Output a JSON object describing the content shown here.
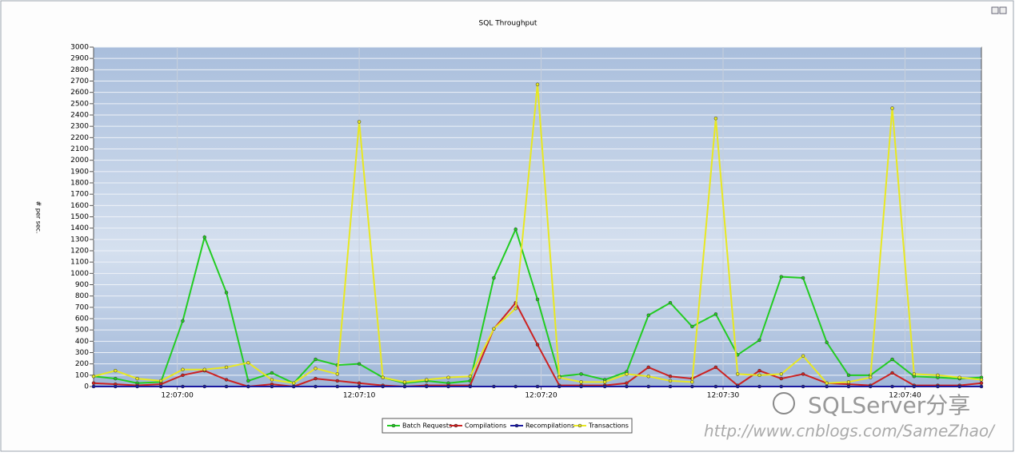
{
  "chart_data": {
    "type": "line",
    "title": "SQL Throughput",
    "y_label": "# per sec.",
    "x": [
      -4.6,
      -3.4,
      -2.2,
      -0.9,
      0.3,
      1.5,
      2.7,
      3.9,
      5.2,
      6.4,
      7.6,
      8.8,
      10.0,
      11.3,
      12.5,
      13.7,
      14.9,
      16.1,
      17.4,
      18.6,
      19.8,
      21.0,
      22.2,
      23.5,
      24.7,
      25.9,
      27.1,
      28.3,
      29.6,
      30.8,
      32.0,
      33.2,
      34.4,
      35.7,
      36.9,
      38.1,
      39.3,
      40.5,
      41.8,
      43.0,
      44.2
    ],
    "xlim": [
      -4.6,
      44.2
    ],
    "xticks": [
      {
        "value": 0,
        "label": "12:07:00"
      },
      {
        "value": 10,
        "label": "12:07:10"
      },
      {
        "value": 20,
        "label": "12:07:20"
      },
      {
        "value": 30,
        "label": "12:07:30"
      },
      {
        "value": 40,
        "label": "12:07:40"
      }
    ],
    "ylim": [
      0,
      3000
    ],
    "yticks": [
      0,
      100,
      200,
      300,
      400,
      500,
      600,
      700,
      800,
      900,
      1000,
      1100,
      1200,
      1300,
      1400,
      1500,
      1600,
      1700,
      1800,
      1900,
      2000,
      2100,
      2200,
      2300,
      2400,
      2500,
      2600,
      2700,
      2800,
      2900,
      3000
    ],
    "grid": true,
    "legend_position": "bottom",
    "series": [
      {
        "name": "Batch Requests",
        "color": "#22cc22",
        "values": [
          90,
          70,
          30,
          40,
          580,
          1320,
          830,
          50,
          120,
          30,
          240,
          190,
          200,
          80,
          30,
          50,
          30,
          50,
          960,
          1390,
          770,
          90,
          110,
          60,
          130,
          630,
          740,
          530,
          640,
          280,
          410,
          970,
          960,
          390,
          100,
          100,
          240,
          90,
          80,
          70,
          80
        ]
      },
      {
        "name": "Compilations",
        "color": "#cc2222",
        "values": [
          30,
          20,
          10,
          20,
          100,
          140,
          60,
          0,
          20,
          0,
          70,
          50,
          30,
          10,
          0,
          10,
          10,
          10,
          510,
          740,
          370,
          10,
          10,
          10,
          30,
          170,
          90,
          70,
          170,
          10,
          140,
          70,
          110,
          30,
          20,
          10,
          120,
          10,
          10,
          10,
          30
        ]
      },
      {
        "name": "Recompilations",
        "color": "#1a1aa0",
        "values": [
          0,
          0,
          0,
          0,
          0,
          0,
          0,
          0,
          0,
          0,
          0,
          0,
          0,
          0,
          0,
          0,
          0,
          0,
          0,
          0,
          0,
          0,
          0,
          0,
          0,
          0,
          0,
          0,
          0,
          0,
          0,
          0,
          0,
          0,
          0,
          0,
          0,
          0,
          0,
          0,
          0
        ]
      },
      {
        "name": "Transactions",
        "color": "#e8e822",
        "values": [
          90,
          140,
          70,
          50,
          150,
          150,
          170,
          210,
          60,
          30,
          160,
          110,
          2340,
          80,
          40,
          60,
          80,
          90,
          510,
          690,
          2670,
          80,
          40,
          40,
          110,
          90,
          50,
          40,
          2370,
          110,
          100,
          110,
          270,
          30,
          40,
          80,
          2460,
          110,
          100,
          80,
          60
        ]
      }
    ],
    "watermark": "SQLServer分享",
    "watermark_url": "http://www.cnblogs.com/SameZhao/"
  }
}
